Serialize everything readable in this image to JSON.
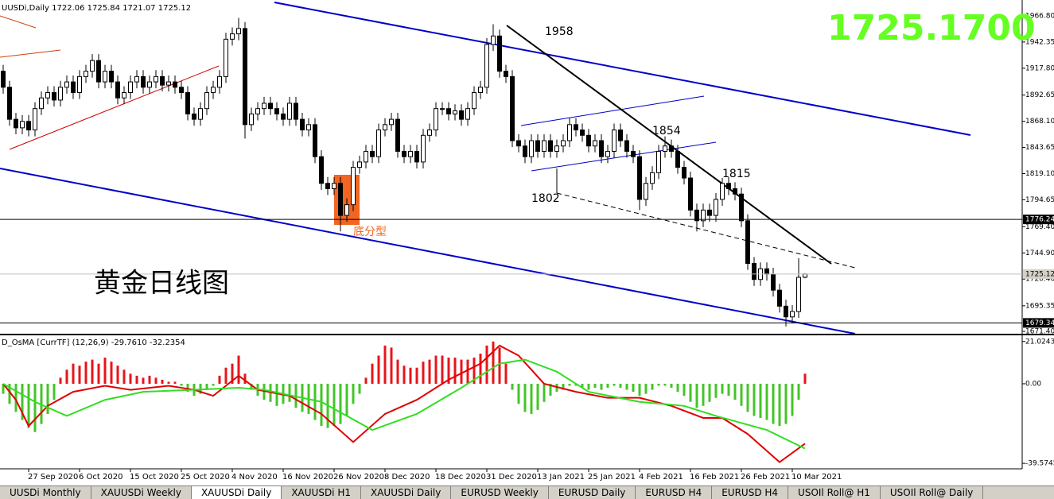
{
  "chart_data": [
    {
      "type": "candlestick",
      "title": "UUSDi,Daily  1722.06 1725.84 1721.07 1725.12",
      "xlim": [
        -0.5,
        160.125
      ],
      "ylim": [
        1669.2,
        1981.7
      ],
      "yticks": [
        {
          "value": 1966.8,
          "label": "1966.80"
        },
        1942.35,
        {
          "value": 1917.8,
          "label": "1917.80"
        },
        1892.65,
        {
          "value": 1868.1,
          "label": "1868.10"
        },
        1843.65,
        {
          "value": 1819.1,
          "label": "1819.10"
        },
        1794.65,
        {
          "value": 1769.4,
          "label": "1769.40"
        },
        {
          "value": 1744.9,
          "label": "1744.90"
        },
        {
          "value": 1720.4,
          "label": "1720.40"
        },
        1695.35,
        {
          "value": 1671.4,
          "label": "1671.40"
        }
      ],
      "grid": false,
      "up_color": "#ffffff",
      "down_color": "#000000",
      "edge_color": "#000000",
      "open": [
        1915,
        1900,
        1870,
        1862,
        1868,
        1860,
        1880,
        1890,
        1895,
        1888,
        1900,
        1905,
        1895,
        1910,
        1915,
        1925,
        1905,
        1915,
        1905,
        1890,
        1895,
        1905,
        1910,
        1900,
        1905,
        1910,
        1902,
        1905,
        1900,
        1895,
        1875,
        1870,
        1880,
        1895,
        1900,
        1910,
        1945,
        1950,
        1955,
        1865,
        1875,
        1880,
        1885,
        1880,
        1875,
        1870,
        1885,
        1870,
        1860,
        1865,
        1835,
        1810,
        1805,
        1810,
        1780,
        1790,
        1825,
        1830,
        1840,
        1835,
        1860,
        1865,
        1870,
        1840,
        1835,
        1840,
        1830,
        1855,
        1860,
        1880,
        1880,
        1875,
        1878,
        1870,
        1880,
        1895,
        1900,
        1940,
        1948,
        1915,
        1910,
        1850,
        1845,
        1835,
        1850,
        1840,
        1850,
        1840,
        1845,
        1850,
        1865,
        1860,
        1855,
        1845,
        1850,
        1835,
        1840,
        1860,
        1850,
        1840,
        1835,
        1795,
        1810,
        1820,
        1840,
        1845,
        1840,
        1825,
        1815,
        1785,
        1775,
        1785,
        1780,
        1795,
        1810,
        1805,
        1800,
        1775,
        1735,
        1720,
        1730,
        1725,
        1710,
        1695,
        1685,
        1690,
        1722.06
      ],
      "high": [
        1921,
        1906,
        1876,
        1874,
        1874,
        1886,
        1896,
        1901,
        1901,
        1906,
        1911,
        1911,
        1916,
        1921,
        1931,
        1931,
        1921,
        1921,
        1911,
        1901,
        1911,
        1916,
        1916,
        1911,
        1916,
        1916,
        1911,
        1911,
        1906,
        1901,
        1881,
        1886,
        1901,
        1906,
        1916,
        1951,
        1956,
        1965,
        1961,
        1881,
        1886,
        1891,
        1891,
        1886,
        1881,
        1891,
        1891,
        1876,
        1871,
        1871,
        1841,
        1816,
        1816,
        1816,
        1796,
        1831,
        1836,
        1846,
        1846,
        1866,
        1871,
        1876,
        1876,
        1846,
        1846,
        1846,
        1861,
        1866,
        1886,
        1886,
        1886,
        1884,
        1884,
        1886,
        1901,
        1906,
        1946,
        1959,
        1954,
        1921,
        1916,
        1856,
        1851,
        1856,
        1856,
        1856,
        1856,
        1851,
        1856,
        1871,
        1871,
        1866,
        1861,
        1856,
        1856,
        1846,
        1866,
        1866,
        1856,
        1846,
        1841,
        1816,
        1826,
        1846,
        1854,
        1851,
        1846,
        1831,
        1821,
        1791,
        1791,
        1791,
        1801,
        1815,
        1816,
        1811,
        1806,
        1781,
        1741,
        1736,
        1736,
        1731,
        1716,
        1701,
        1696,
        1740,
        1725.84
      ],
      "low": [
        1894,
        1864,
        1856,
        1856,
        1854,
        1854,
        1874,
        1884,
        1882,
        1882,
        1894,
        1889,
        1889,
        1904,
        1909,
        1899,
        1899,
        1899,
        1884,
        1884,
        1889,
        1899,
        1894,
        1894,
        1899,
        1896,
        1896,
        1894,
        1889,
        1869,
        1864,
        1864,
        1874,
        1889,
        1894,
        1904,
        1939,
        1944,
        1852,
        1859,
        1869,
        1874,
        1874,
        1869,
        1864,
        1864,
        1864,
        1854,
        1854,
        1829,
        1804,
        1799,
        1799,
        1765,
        1774,
        1784,
        1819,
        1824,
        1829,
        1829,
        1854,
        1859,
        1834,
        1829,
        1829,
        1824,
        1824,
        1849,
        1854,
        1874,
        1869,
        1869,
        1864,
        1864,
        1874,
        1889,
        1894,
        1934,
        1909,
        1904,
        1844,
        1839,
        1829,
        1829,
        1834,
        1834,
        1834,
        1834,
        1839,
        1844,
        1854,
        1849,
        1839,
        1839,
        1829,
        1829,
        1834,
        1844,
        1834,
        1829,
        1785,
        1789,
        1804,
        1814,
        1834,
        1834,
        1819,
        1809,
        1779,
        1765,
        1769,
        1774,
        1774,
        1789,
        1799,
        1794,
        1769,
        1729,
        1714,
        1714,
        1719,
        1704,
        1689,
        1676,
        1679,
        1684,
        1721.07
      ],
      "close": [
        1900,
        1870,
        1862,
        1868,
        1860,
        1880,
        1890,
        1895,
        1888,
        1900,
        1905,
        1895,
        1910,
        1915,
        1925,
        1905,
        1915,
        1905,
        1890,
        1895,
        1905,
        1910,
        1900,
        1905,
        1910,
        1902,
        1905,
        1900,
        1895,
        1875,
        1870,
        1880,
        1895,
        1900,
        1910,
        1945,
        1950,
        1955,
        1865,
        1875,
        1880,
        1885,
        1880,
        1875,
        1870,
        1885,
        1870,
        1860,
        1865,
        1835,
        1810,
        1805,
        1810,
        1780,
        1790,
        1825,
        1830,
        1840,
        1835,
        1860,
        1865,
        1870,
        1840,
        1835,
        1840,
        1830,
        1855,
        1860,
        1880,
        1880,
        1875,
        1878,
        1870,
        1880,
        1895,
        1900,
        1940,
        1948,
        1915,
        1910,
        1850,
        1845,
        1835,
        1850,
        1840,
        1850,
        1840,
        1845,
        1850,
        1865,
        1860,
        1855,
        1845,
        1850,
        1835,
        1840,
        1860,
        1850,
        1840,
        1835,
        1795,
        1810,
        1820,
        1840,
        1845,
        1840,
        1825,
        1815,
        1785,
        1775,
        1785,
        1780,
        1795,
        1810,
        1805,
        1800,
        1775,
        1735,
        1720,
        1730,
        1725,
        1710,
        1695,
        1685,
        1690,
        1722,
        1725.12
      ],
      "hlines": [
        {
          "value": 1776.24,
          "color": "#000000",
          "box": "#000000",
          "text_color": "#ffffff"
        },
        {
          "value": 1725.12,
          "color": "#c0c0c0",
          "box": "#d4d0c8",
          "text_color": "#000000"
        },
        {
          "value": 1679.34,
          "color": "#000000",
          "box": "#000000",
          "text_color": "#ffffff"
        }
      ],
      "annotations": [
        "1958",
        "1854",
        "1815",
        "1802",
        "底分型",
        "黄金日线图",
        "1725.1700"
      ]
    },
    {
      "type": "osma",
      "title": "D_OsMA [CurrTF] (12,26,9) -29.7610 -32.2354",
      "xlim": [
        -0.5,
        160.125
      ],
      "ylim": [
        -42.3,
        23.7
      ],
      "yticks": [
        21.0243,
        {
          "value": 0,
          "label": "0.00"
        },
        -39.5745
      ],
      "xticks": [
        {
          "value": 4,
          "label": "27 Sep 2020"
        },
        {
          "value": 12,
          "label": "6 Oct 2020"
        },
        {
          "value": 20,
          "label": "15 Oct 2020"
        },
        {
          "value": 28,
          "label": "25 Oct 2020"
        },
        {
          "value": 36,
          "label": "4 Nov 2020"
        },
        {
          "value": 44,
          "label": "16 Nov 2020"
        },
        {
          "value": 52,
          "label": "26 Nov 2020"
        },
        {
          "value": 60,
          "label": "8 Dec 2020"
        },
        {
          "value": 68,
          "label": "18 Dec 2020"
        },
        {
          "value": 76,
          "label": "31 Dec 2020"
        },
        {
          "value": 84,
          "label": "13 Jan 2021"
        },
        {
          "value": 92,
          "label": "25 Jan 2021"
        },
        {
          "value": 100,
          "label": "4 Feb 2021"
        },
        {
          "value": 108,
          "label": "16 Feb 2021"
        },
        {
          "value": 116,
          "label": "26 Feb 2021"
        },
        {
          "value": 124,
          "label": "10 Mar 2021"
        }
      ],
      "pos_color": "#e8141a",
      "neg_color": "#44c42a",
      "values": [
        -5,
        -10,
        -14,
        -18,
        -22,
        -24,
        -20,
        -15,
        -8,
        3,
        7,
        10,
        9,
        11,
        12,
        10,
        13,
        11,
        9,
        7,
        5,
        4,
        3,
        4,
        3,
        2,
        1,
        1,
        -1,
        -4,
        -6,
        -5,
        -3,
        -1,
        4,
        8,
        10,
        14,
        5,
        -3,
        -6,
        -8,
        -9,
        -11,
        -10,
        -9,
        -12,
        -14,
        -15,
        -18,
        -21,
        -22,
        -21,
        -20,
        -16,
        -10,
        -5,
        3,
        10,
        14,
        19,
        18,
        12,
        9,
        8,
        8,
        11,
        12,
        14,
        14,
        13,
        13,
        12,
        12,
        13,
        15,
        19,
        21,
        18,
        10,
        -3,
        -10,
        -14,
        -15,
        -13,
        -9,
        -6,
        -4,
        -3,
        -1,
        -1,
        -2,
        -3,
        -2,
        -3,
        -2,
        -1,
        -2,
        -3,
        -4,
        -6,
        -5,
        -3,
        -1,
        -1,
        -2,
        -4,
        -6,
        -9,
        -12,
        -11,
        -9,
        -7,
        -5,
        -6,
        -8,
        -11,
        -14,
        -16,
        -17,
        -18,
        -20,
        -21,
        -20,
        -16,
        -8,
        5
      ],
      "series": [
        {
          "color": "#e00000",
          "x": [
            0,
            2,
            4,
            7,
            11,
            16,
            20,
            26,
            30,
            33,
            37,
            40,
            45,
            50,
            55,
            60,
            65,
            70,
            75,
            78,
            81,
            85,
            90,
            95,
            100,
            105,
            110,
            113,
            117,
            122,
            126
          ],
          "values": [
            0,
            -8,
            -21,
            -11,
            -4,
            -1,
            -3,
            -1,
            -3,
            -6,
            4,
            -3,
            -6,
            -15,
            -29,
            -15,
            -8,
            2,
            10,
            19,
            14,
            0,
            -4,
            -7,
            -7,
            -11,
            -17,
            -17,
            -25,
            -39,
            -29.761
          ]
        },
        {
          "color": "#33dd22",
          "x": [
            0,
            5,
            10,
            16,
            22,
            30,
            37,
            41,
            50,
            58,
            65,
            72,
            78,
            82,
            87,
            92,
            100,
            107,
            112,
            120,
            126
          ],
          "values": [
            0,
            -9,
            -16,
            -8,
            -4,
            -3,
            -2,
            -3,
            -9,
            -23,
            -15,
            -2,
            10,
            12,
            6,
            -4,
            -9,
            -11,
            -16,
            -23,
            -32.2354
          ]
        }
      ]
    }
  ],
  "tabs": [
    "UUSDi Monthly",
    "XAUUSDi Weekly",
    "XAUUSDi Daily",
    "XAUUSDi H1",
    "XAUUSDi Daily",
    "EURUSD Weekly",
    "EURUSD Daily",
    "EURUSD H4",
    "EURUSD H4",
    "USOIl Roll@ H1",
    "USOIl Roll@ Daily"
  ],
  "active_tab": 2
}
